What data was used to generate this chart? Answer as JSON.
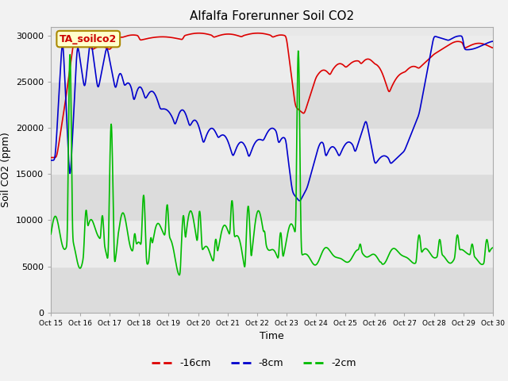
{
  "title": "Alfalfa Forerunner Soil CO2",
  "xlabel": "Time",
  "ylabel": "Soil CO2 (ppm)",
  "ylim": [
    0,
    31000
  ],
  "yticks": [
    0,
    5000,
    10000,
    15000,
    20000,
    25000,
    30000
  ],
  "label_box_text": "TA_soilco2",
  "fig_bg": "#f2f2f2",
  "plot_bg": "#e8e8e8",
  "band_colors": [
    "#dcdcdc",
    "#ececec"
  ],
  "line_colors": [
    "#dd0000",
    "#0000cc",
    "#00bb00"
  ],
  "line_labels": [
    "-16cm",
    "-8cm",
    "-2cm"
  ],
  "x_tick_labels": [
    "Oct 15",
    "Oct 16",
    "Oct 17",
    "Oct 18",
    "Oct 19",
    "Oct 20",
    "Oct 21",
    "Oct 22",
    "Oct 23",
    "Oct 24",
    "Oct 25",
    "Oct 26",
    "Oct 27",
    "Oct 28",
    "Oct 29",
    "Oct 30"
  ],
  "legend_labels": [
    "-16cm",
    "-8cm",
    "-2cm"
  ]
}
